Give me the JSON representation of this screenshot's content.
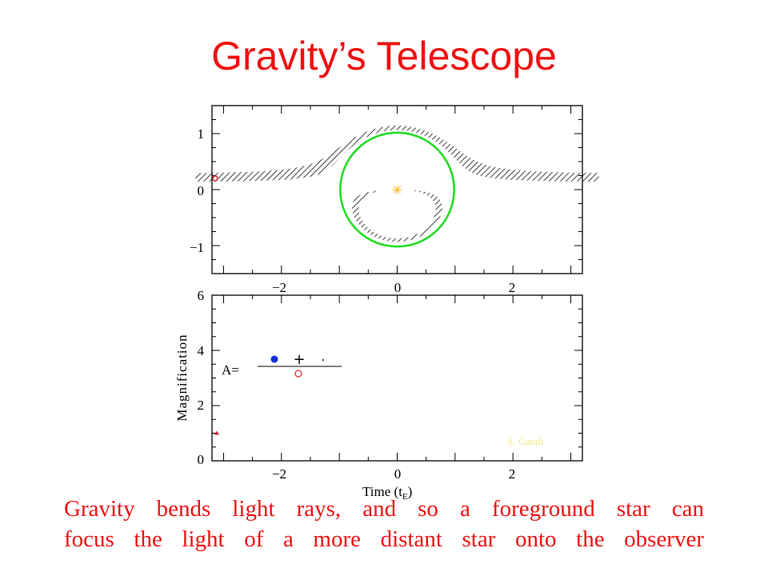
{
  "slide": {
    "title": "Gravity’s Telescope",
    "caption_line1": "Gravity bends light rays, and so a foreground star can",
    "caption_line2": "focus the light of a more distant star onto the observer",
    "credit": "S. Gaudi",
    "colors": {
      "title": "#ee1111",
      "caption": "#ee1111",
      "einstein_ring": "#22dd22",
      "lens_star": "#ffaa00",
      "source": "#cc2222",
      "image_major": "#1133dd",
      "image_minor": "#dd3333",
      "credit": "#f2e888"
    }
  },
  "chart_data": [
    {
      "type": "line",
      "panel": "top",
      "title": "",
      "xlabel": "",
      "ylabel": "",
      "xlim": [
        -3.2,
        3.2
      ],
      "ylim": [
        -1.5,
        1.5
      ],
      "x_ticks": [
        "−2",
        "0",
        "2"
      ],
      "y_ticks": [
        "1",
        "0",
        "−1"
      ],
      "x_tick_values": [
        -2,
        0,
        2
      ],
      "y_tick_values": [
        1,
        0,
        -1
      ],
      "einstein_ring_radius": 1.0,
      "lens_position": [
        0,
        0
      ],
      "source_impact_parameter": 0.2,
      "source_radius": 0.07,
      "source_start_x": -3.2
    },
    {
      "type": "line",
      "panel": "bottom",
      "title": "",
      "xlabel": "Time (tE)",
      "xlabel_main": "Time  (t",
      "xlabel_sub": "E",
      "xlabel_close": ")",
      "ylabel": "Magnification",
      "xlim": [
        -3.2,
        3.2
      ],
      "ylim": [
        0,
        6
      ],
      "x_ticks": [
        "−2",
        "0",
        "2"
      ],
      "y_ticks": [
        "6",
        "4",
        "2",
        "0"
      ],
      "x_tick_values": [
        -2,
        0,
        2
      ],
      "y_tick_values": [
        6,
        4,
        2,
        0
      ],
      "points": [
        {
          "x": -3.2,
          "y": 1.0
        }
      ],
      "legend": {
        "label": "A=",
        "symbols": [
          "filled-circle",
          "plus",
          "dot",
          "open-circle"
        ]
      }
    }
  ]
}
